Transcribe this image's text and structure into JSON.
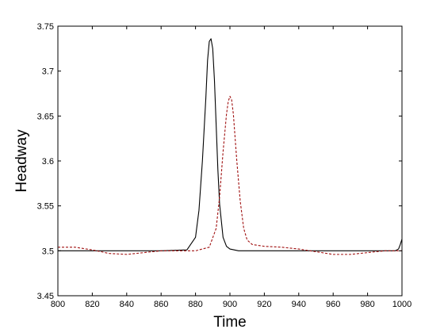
{
  "chart_data": {
    "type": "line",
    "xlabel": "Time",
    "ylabel": "Headway",
    "xlim": [
      800,
      1000
    ],
    "ylim": [
      3.45,
      3.75
    ],
    "xticks": [
      "800",
      "820",
      "840",
      "860",
      "880",
      "900",
      "920",
      "940",
      "960",
      "980",
      "1000"
    ],
    "yticks": [
      "3.45",
      "3.5",
      "3.55",
      "3.6",
      "3.65",
      "3.7",
      "3.75"
    ],
    "grid": false,
    "series": [
      {
        "style": "solid",
        "color": "#000000",
        "x": [
          800,
          820,
          840,
          860,
          875,
          880,
          882,
          884,
          886,
          887,
          888,
          889,
          890,
          891,
          892,
          893,
          894,
          896,
          898,
          900,
          905,
          910,
          920,
          940,
          960,
          980,
          996,
          998,
          999,
          1000
        ],
        "y": [
          3.5,
          3.5,
          3.5,
          3.5,
          3.501,
          3.515,
          3.545,
          3.6,
          3.67,
          3.712,
          3.733,
          3.736,
          3.725,
          3.69,
          3.64,
          3.59,
          3.552,
          3.515,
          3.505,
          3.502,
          3.5,
          3.5,
          3.5,
          3.5,
          3.5,
          3.5,
          3.5,
          3.502,
          3.507,
          3.513
        ]
      },
      {
        "style": "dashed",
        "color": "#a01010",
        "x": [
          800,
          810,
          820,
          830,
          840,
          850,
          860,
          870,
          880,
          888,
          892,
          894,
          896,
          898,
          899,
          900,
          901,
          902,
          904,
          906,
          908,
          910,
          913,
          920,
          930,
          940,
          950,
          960,
          970,
          980,
          990,
          1000
        ],
        "y": [
          3.504,
          3.504,
          3.501,
          3.497,
          3.496,
          3.498,
          3.5,
          3.5,
          3.5,
          3.504,
          3.525,
          3.56,
          3.61,
          3.652,
          3.666,
          3.672,
          3.668,
          3.652,
          3.6,
          3.555,
          3.525,
          3.512,
          3.507,
          3.505,
          3.504,
          3.502,
          3.499,
          3.496,
          3.496,
          3.498,
          3.5,
          3.5
        ]
      }
    ]
  }
}
